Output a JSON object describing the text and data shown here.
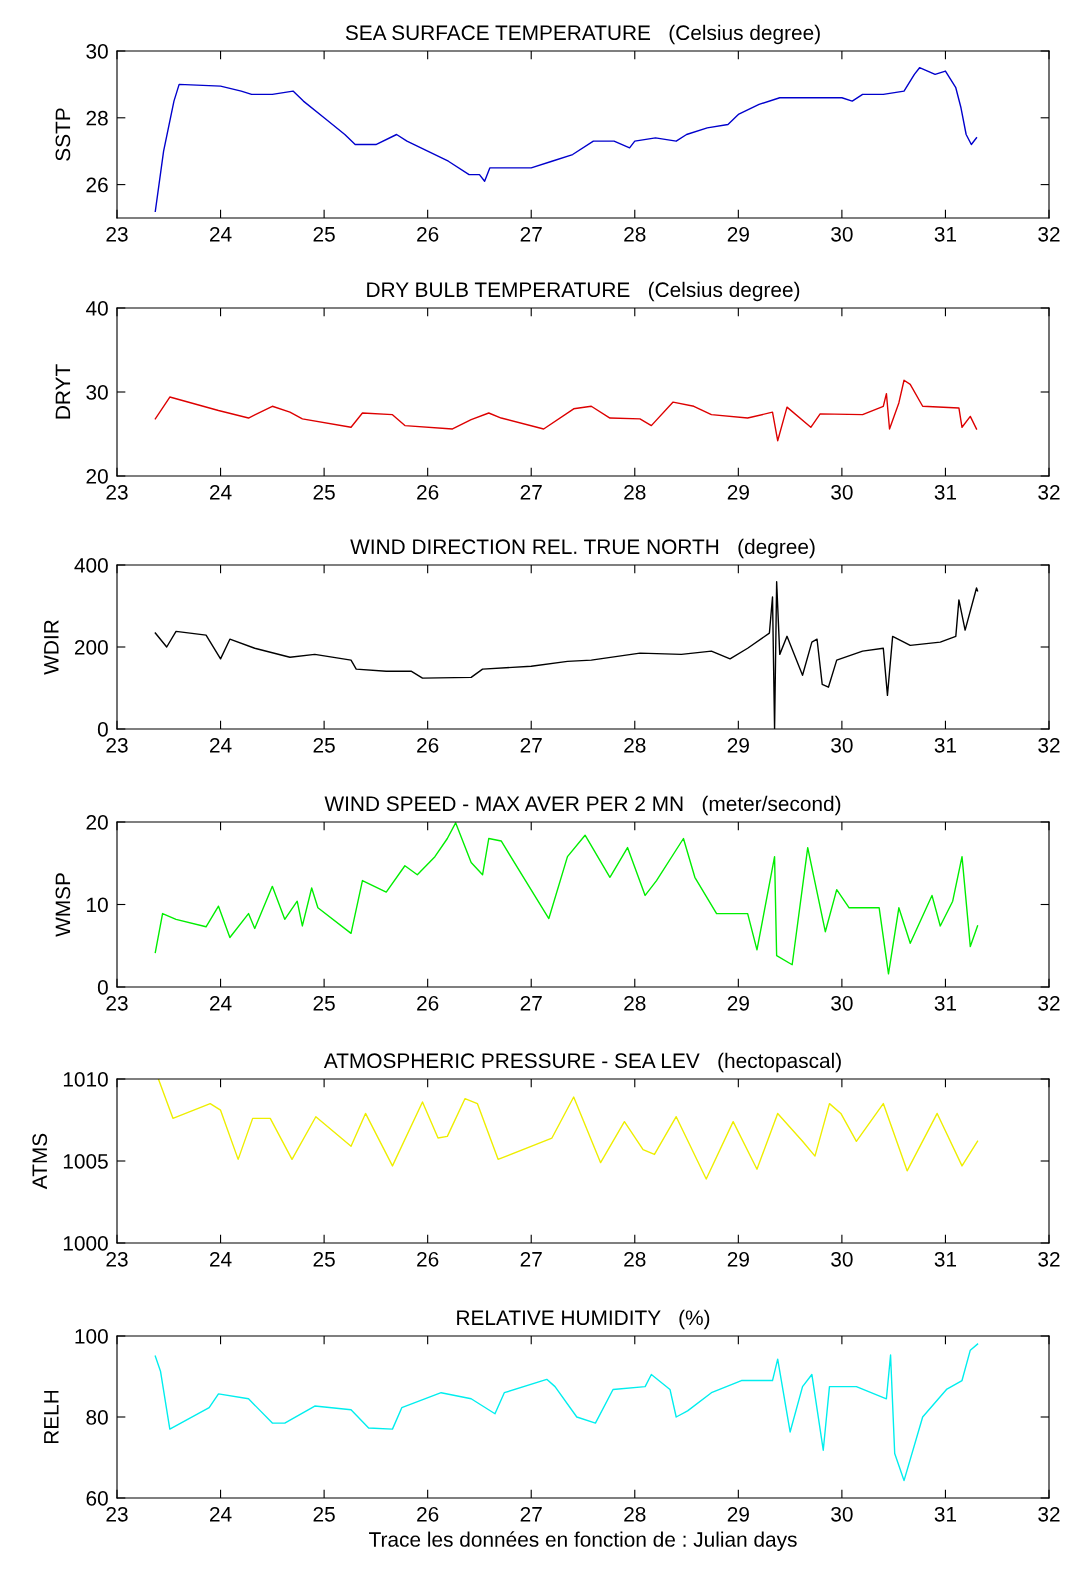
{
  "chart_data": [
    {
      "type": "line",
      "title": "SEA SURFACE TEMPERATURE   (Celsius degree)",
      "ylabel": "SSTP",
      "xlim": [
        23,
        32
      ],
      "xticks": [
        23,
        24,
        25,
        26,
        27,
        28,
        29,
        30,
        31,
        32
      ],
      "ylim": [
        25,
        30
      ],
      "yticks": [
        26,
        28,
        30
      ],
      "grid": false,
      "line_style": "solid",
      "series": [
        {
          "color": "#0000cc",
          "x": [
            23.37,
            23.45,
            23.55,
            23.6,
            24.0,
            24.2,
            24.3,
            24.5,
            24.7,
            24.8,
            25.0,
            25.2,
            25.3,
            25.5,
            25.7,
            25.8,
            26.0,
            26.2,
            26.4,
            26.5,
            26.55,
            26.6,
            27.0,
            27.2,
            27.4,
            27.6,
            27.8,
            27.95,
            28.0,
            28.2,
            28.4,
            28.5,
            28.7,
            28.9,
            29.0,
            29.2,
            29.4,
            29.6,
            29.8,
            30.0,
            30.1,
            30.2,
            30.4,
            30.6,
            30.7,
            30.75,
            30.9,
            31.0,
            31.1,
            31.15,
            31.2,
            31.25,
            31.3
          ],
          "values": [
            25.2,
            27.0,
            28.5,
            29.0,
            28.95,
            28.8,
            28.7,
            28.7,
            28.8,
            28.5,
            28.0,
            27.5,
            27.2,
            27.2,
            27.5,
            27.3,
            27.0,
            26.7,
            26.3,
            26.3,
            26.1,
            26.5,
            26.5,
            26.7,
            26.9,
            27.3,
            27.3,
            27.1,
            27.3,
            27.4,
            27.3,
            27.5,
            27.7,
            27.8,
            28.1,
            28.4,
            28.6,
            28.6,
            28.6,
            28.6,
            28.5,
            28.7,
            28.7,
            28.8,
            29.3,
            29.5,
            29.3,
            29.4,
            28.9,
            28.3,
            27.5,
            27.2,
            27.4
          ]
        }
      ]
    },
    {
      "type": "line",
      "title": "DRY BULB TEMPERATURE   (Celsius degree)",
      "ylabel": "DRYT",
      "xlim": [
        23,
        32
      ],
      "xticks": [
        23,
        24,
        25,
        26,
        27,
        28,
        29,
        30,
        31,
        32
      ],
      "ylim": [
        20,
        40
      ],
      "yticks": [
        20,
        30,
        40
      ],
      "grid": false,
      "line_style": "solid",
      "series": [
        {
          "color": "#dd0000",
          "x": [
            23.37,
            23.51,
            23.98,
            24.27,
            24.5,
            24.67,
            24.79,
            25.26,
            25.37,
            25.66,
            25.78,
            26.24,
            26.42,
            26.59,
            26.71,
            27.12,
            27.41,
            27.58,
            27.76,
            28.05,
            28.16,
            28.37,
            28.57,
            28.74,
            29.09,
            29.33,
            29.38,
            29.47,
            29.7,
            29.79,
            30.2,
            30.4,
            30.43,
            30.46,
            30.55,
            30.6,
            30.66,
            30.78,
            31.13,
            31.16,
            31.24,
            31.3
          ],
          "values": [
            26.8,
            29.4,
            27.8,
            26.9,
            28.3,
            27.6,
            26.8,
            25.8,
            27.5,
            27.3,
            26.0,
            25.6,
            26.7,
            27.5,
            26.9,
            25.6,
            28.0,
            28.3,
            26.9,
            26.8,
            26.0,
            28.8,
            28.3,
            27.3,
            26.9,
            27.6,
            24.2,
            28.2,
            25.8,
            27.4,
            27.3,
            28.3,
            29.8,
            25.6,
            28.7,
            31.4,
            30.9,
            28.3,
            28.1,
            25.8,
            27.1,
            25.6
          ]
        }
      ]
    },
    {
      "type": "line",
      "title": "WIND DIRECTION REL. TRUE NORTH   (degree)",
      "ylabel": "WDIR",
      "xlim": [
        23,
        32
      ],
      "xticks": [
        23,
        24,
        25,
        26,
        27,
        28,
        29,
        30,
        31,
        32
      ],
      "ylim": [
        0,
        400
      ],
      "yticks": [
        0,
        200,
        400
      ],
      "grid": false,
      "line_style": "solid",
      "series": [
        {
          "color": "#000000",
          "x": [
            23.37,
            23.48,
            23.57,
            23.86,
            24.0,
            24.09,
            24.33,
            24.67,
            24.91,
            25.26,
            25.31,
            25.6,
            25.84,
            25.95,
            26.42,
            26.53,
            27.0,
            27.35,
            27.58,
            28.05,
            28.45,
            28.74,
            28.92,
            29.09,
            29.3,
            29.33,
            29.35,
            29.37,
            29.4,
            29.47,
            29.62,
            29.71,
            29.76,
            29.81,
            29.87,
            29.95,
            30.2,
            30.4,
            30.44,
            30.49,
            30.66,
            30.95,
            31.1,
            31.13,
            31.19,
            31.3,
            31.31
          ],
          "values": [
            234,
            200,
            238,
            229,
            171,
            219,
            197,
            175,
            182,
            168,
            146,
            141,
            141,
            124,
            126,
            146,
            153,
            165,
            168,
            185,
            182,
            190,
            171,
            197,
            234,
            322,
            0,
            359,
            182,
            226,
            131,
            212,
            219,
            109,
            102,
            168,
            190,
            197,
            82,
            226,
            204,
            212,
            226,
            315,
            241,
            344,
            337
          ]
        }
      ]
    },
    {
      "type": "line",
      "title": "WIND SPEED - MAX AVER PER 2 MN   (meter/second)",
      "ylabel": "WMSP",
      "xlim": [
        23,
        32
      ],
      "xticks": [
        23,
        24,
        25,
        26,
        27,
        28,
        29,
        30,
        31,
        32
      ],
      "ylim": [
        0,
        20
      ],
      "yticks": [
        0,
        10,
        20
      ],
      "grid": false,
      "line_style": "solid",
      "series": [
        {
          "color": "#00ee00",
          "x": [
            23.37,
            23.44,
            23.57,
            23.86,
            23.98,
            24.09,
            24.27,
            24.33,
            24.5,
            24.62,
            24.74,
            24.79,
            24.88,
            24.94,
            25.26,
            25.37,
            25.6,
            25.78,
            25.9,
            26.07,
            26.19,
            26.27,
            26.42,
            26.53,
            26.59,
            26.71,
            27.17,
            27.35,
            27.52,
            27.76,
            27.93,
            28.1,
            28.21,
            28.47,
            28.58,
            28.79,
            29.09,
            29.18,
            29.35,
            29.37,
            29.52,
            29.67,
            29.84,
            29.95,
            30.07,
            30.36,
            30.45,
            30.55,
            30.66,
            30.87,
            30.95,
            31.07,
            31.16,
            31.24,
            31.31
          ],
          "values": [
            4.2,
            8.9,
            8.2,
            7.3,
            9.8,
            6.0,
            8.9,
            7.1,
            12.2,
            8.2,
            10.4,
            7.4,
            12.0,
            9.6,
            6.5,
            12.9,
            11.5,
            14.7,
            13.6,
            15.8,
            18.0,
            19.9,
            15.1,
            13.6,
            18.0,
            17.7,
            8.3,
            15.8,
            18.4,
            13.3,
            16.9,
            11.1,
            12.9,
            18.0,
            13.3,
            8.9,
            8.9,
            4.5,
            15.8,
            3.8,
            2.7,
            16.9,
            6.7,
            11.8,
            9.6,
            9.6,
            1.6,
            9.6,
            5.3,
            11.1,
            7.4,
            10.4,
            15.8,
            4.9,
            7.4
          ]
        }
      ]
    },
    {
      "type": "line",
      "title": "ATMOSPHERIC PRESSURE - SEA LEV   (hectopascal)",
      "ylabel": "ATMS",
      "xlim": [
        23,
        32
      ],
      "xticks": [
        23,
        24,
        25,
        26,
        27,
        28,
        29,
        30,
        31,
        32
      ],
      "ylim": [
        1000,
        1010
      ],
      "yticks": [
        1000,
        1005,
        1010
      ],
      "grid": false,
      "line_style": "solid",
      "series": [
        {
          "color": "#eeee00",
          "x": [
            23.4,
            23.54,
            23.9,
            24.0,
            24.17,
            24.31,
            24.48,
            24.69,
            24.92,
            25.26,
            25.4,
            25.66,
            25.95,
            26.1,
            26.19,
            26.36,
            26.48,
            26.68,
            27.2,
            27.41,
            27.67,
            27.9,
            28.08,
            28.19,
            28.4,
            28.69,
            28.95,
            29.18,
            29.38,
            29.62,
            29.74,
            29.88,
            29.99,
            30.14,
            30.4,
            30.63,
            30.92,
            31.16,
            31.31
          ],
          "values": [
            1010.0,
            1007.6,
            1008.5,
            1008.1,
            1005.1,
            1007.6,
            1007.6,
            1005.1,
            1007.7,
            1005.9,
            1007.9,
            1004.7,
            1008.6,
            1006.4,
            1006.5,
            1008.8,
            1008.5,
            1005.1,
            1006.4,
            1008.9,
            1004.9,
            1007.4,
            1005.7,
            1005.4,
            1007.7,
            1003.9,
            1007.4,
            1004.5,
            1007.9,
            1006.2,
            1005.3,
            1008.5,
            1007.9,
            1006.2,
            1008.5,
            1004.4,
            1007.9,
            1004.7,
            1006.2
          ]
        }
      ]
    },
    {
      "type": "line",
      "title": "RELATIVE HUMIDITY   (%)",
      "ylabel": "RELH",
      "xlabel": "Trace les données en fonction de : Julian days",
      "xlim": [
        23,
        32
      ],
      "xticks": [
        23,
        24,
        25,
        26,
        27,
        28,
        29,
        30,
        31,
        32
      ],
      "ylim": [
        60,
        100
      ],
      "yticks": [
        60,
        80,
        100
      ],
      "grid": false,
      "line_style": "solid",
      "series": [
        {
          "color": "#00eeee",
          "x": [
            23.37,
            23.42,
            23.51,
            23.89,
            23.98,
            24.27,
            24.5,
            24.62,
            24.91,
            25.26,
            25.43,
            25.66,
            25.75,
            26.13,
            26.42,
            26.65,
            26.74,
            27.15,
            27.23,
            27.44,
            27.62,
            27.79,
            28.1,
            28.16,
            28.34,
            28.4,
            28.51,
            28.74,
            29.03,
            29.33,
            29.38,
            29.5,
            29.62,
            29.71,
            29.82,
            29.88,
            30.14,
            30.43,
            30.47,
            30.51,
            30.6,
            30.78,
            31.01,
            31.16,
            31.24,
            31.31
          ],
          "values": [
            95.0,
            91.3,
            77.0,
            82.3,
            85.7,
            84.5,
            78.5,
            78.5,
            82.7,
            81.8,
            77.3,
            77.0,
            82.3,
            86.0,
            84.5,
            80.8,
            86.0,
            89.3,
            87.5,
            80.0,
            78.5,
            86.8,
            87.5,
            90.5,
            86.8,
            80.0,
            81.5,
            86.0,
            89.0,
            89.0,
            94.3,
            76.3,
            87.5,
            90.5,
            71.8,
            87.5,
            87.5,
            84.5,
            95.3,
            71.0,
            64.3,
            80.0,
            86.8,
            89.0,
            96.5,
            98.0
          ]
        }
      ]
    }
  ]
}
